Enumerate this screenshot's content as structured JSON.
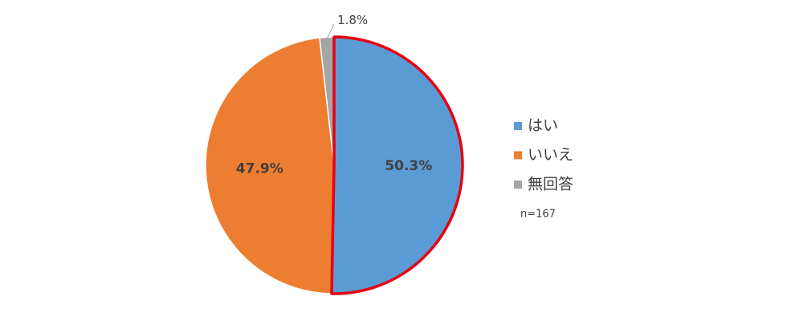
{
  "chart_data": {
    "type": "pie",
    "categories": [
      "はい",
      "いいえ",
      "無回答"
    ],
    "values": [
      50.3,
      47.9,
      1.8
    ],
    "value_labels": [
      "50.3%",
      "47.9%",
      "1.8%"
    ],
    "colors": [
      "#5b9bd5",
      "#ed7d31",
      "#a5a5a5"
    ],
    "edge_colors": [
      "#e60012",
      "#ffffff",
      "#ffffff"
    ],
    "legend": "right",
    "annotation": "n=167"
  }
}
